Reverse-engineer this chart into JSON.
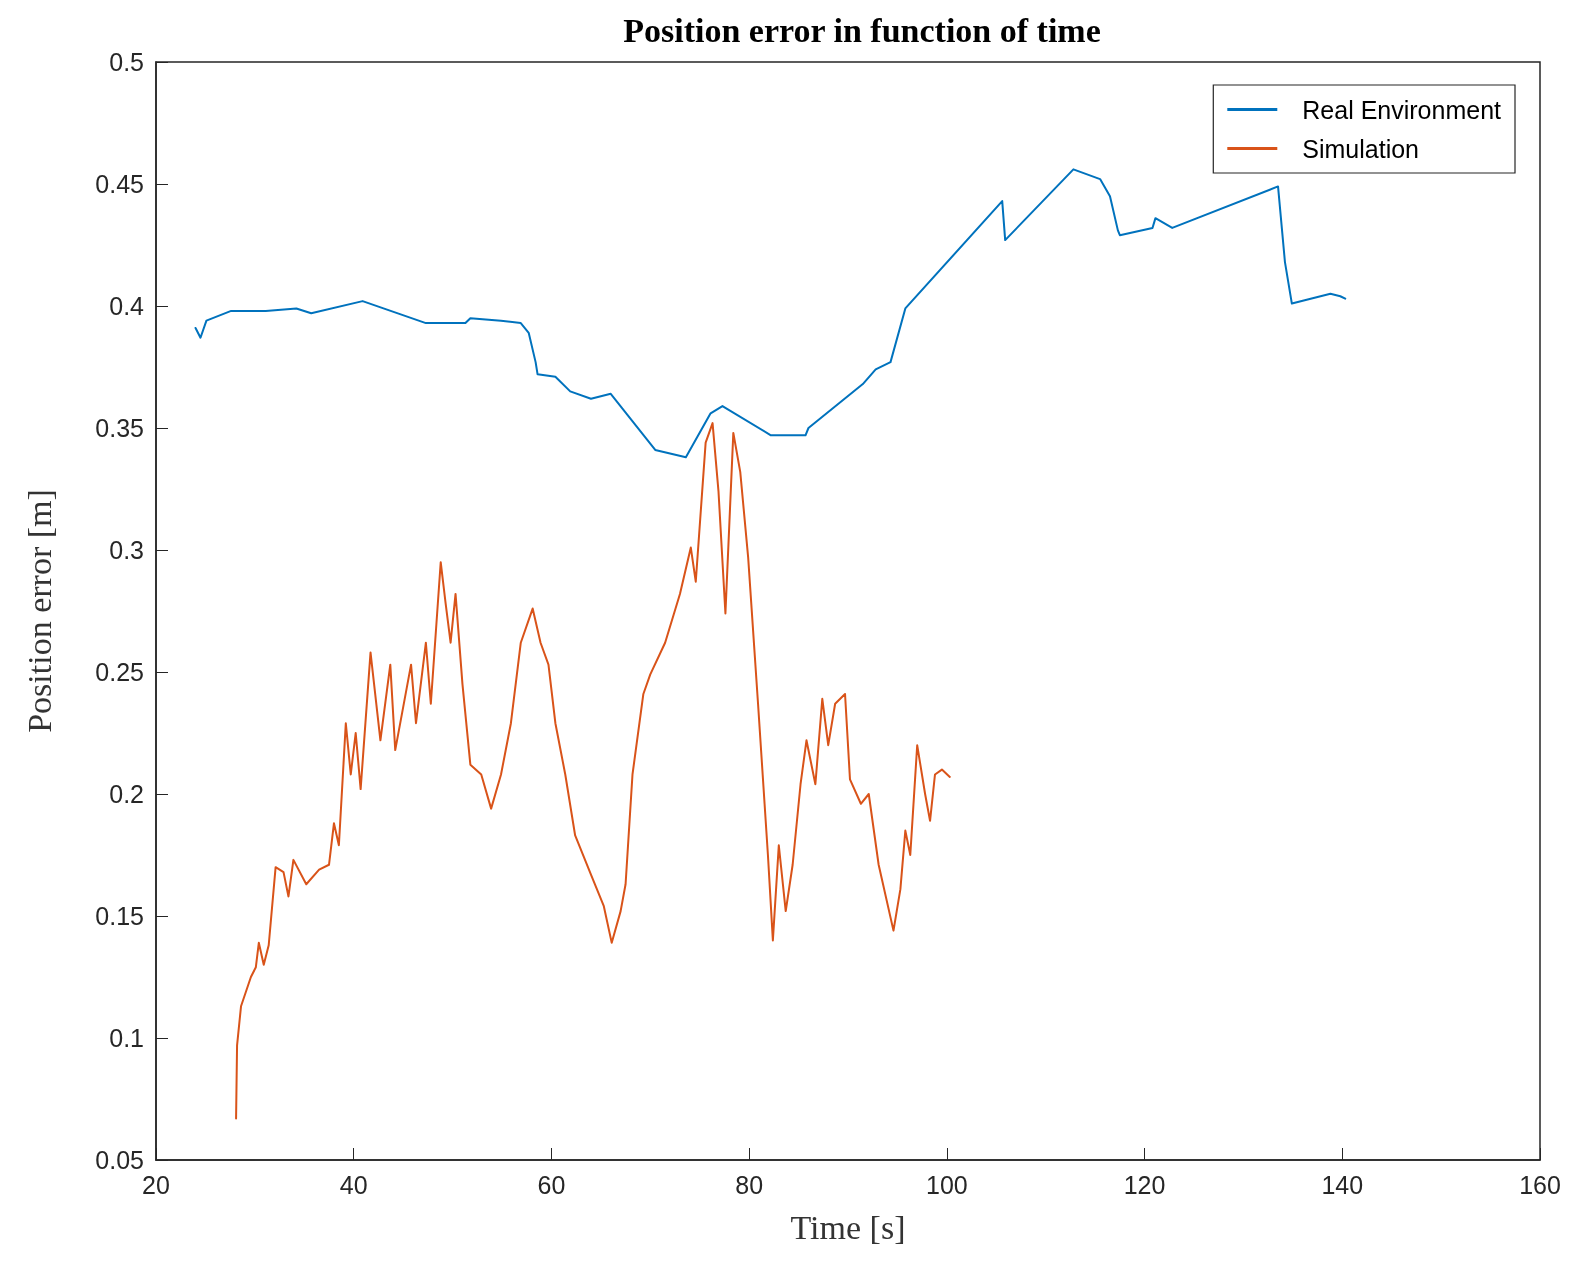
{
  "chart_data": {
    "type": "line",
    "title": "Position error in function of time",
    "xlabel": "Time [s]",
    "ylabel": "Position error [m]",
    "xlim": [
      20,
      160
    ],
    "xticks": [
      20,
      40,
      60,
      80,
      100,
      120,
      140,
      160
    ],
    "ylim": [
      0.05,
      0.5
    ],
    "yticks": [
      0.05,
      0.1,
      0.15,
      0.2,
      0.25,
      0.3,
      0.35,
      0.4,
      0.45,
      0.5
    ],
    "grid": false,
    "legend": "top right",
    "marker": "none",
    "line_style": "solid",
    "series": [
      {
        "name": "Real Environment",
        "color": "#0072bd",
        "x": [
          24.0,
          24.5,
          25.1,
          27.6,
          31.1,
          34.2,
          35.7,
          40.9,
          47.3,
          51.3,
          51.8,
          54.9,
          56.9,
          57.7,
          58.4,
          58.6,
          60.4,
          61.9,
          64.0,
          66.0,
          70.5,
          73.6,
          76.1,
          77.3,
          82.2,
          85.7,
          86.0,
          91.5,
          92.8,
          94.3,
          95.8,
          105.6,
          105.9,
          112.8,
          115.5,
          116.5,
          117.3,
          117.5,
          120.8,
          121.1,
          122.8,
          133.5,
          134.2,
          134.9,
          138.8,
          139.8,
          140.3
        ],
        "values": [
          0.391,
          0.387,
          0.394,
          0.398,
          0.398,
          0.399,
          0.397,
          0.402,
          0.393,
          0.393,
          0.395,
          0.394,
          0.393,
          0.389,
          0.377,
          0.372,
          0.371,
          0.365,
          0.362,
          0.364,
          0.341,
          0.338,
          0.356,
          0.359,
          0.347,
          0.347,
          0.35,
          0.368,
          0.374,
          0.377,
          0.399,
          0.443,
          0.427,
          0.456,
          0.452,
          0.445,
          0.431,
          0.429,
          0.432,
          0.436,
          0.432,
          0.449,
          0.418,
          0.401,
          0.405,
          0.404,
          0.403
        ]
      },
      {
        "name": "Simulation",
        "color": "#d95319",
        "x": [
          28.1,
          28.2,
          28.6,
          29.6,
          30.1,
          30.4,
          30.9,
          31.4,
          32.1,
          32.9,
          33.4,
          33.9,
          35.2,
          36.5,
          37.5,
          38.0,
          38.5,
          39.2,
          39.7,
          40.2,
          40.7,
          41.7,
          42.7,
          43.7,
          44.2,
          45.8,
          46.3,
          47.3,
          47.8,
          48.8,
          49.3,
          49.8,
          50.3,
          51.0,
          51.8,
          52.9,
          53.9,
          54.9,
          55.9,
          56.9,
          58.1,
          58.9,
          59.7,
          60.4,
          61.4,
          62.4,
          64.0,
          65.3,
          66.1,
          67.0,
          67.5,
          68.2,
          69.3,
          70.0,
          71.5,
          73.0,
          74.1,
          74.6,
          75.6,
          76.3,
          76.9,
          77.6,
          78.4,
          79.1,
          79.9,
          80.9,
          81.9,
          82.4,
          83.0,
          83.7,
          84.4,
          85.2,
          85.8,
          86.7,
          87.4,
          88.0,
          88.7,
          89.7,
          90.2,
          91.3,
          92.1,
          93.1,
          94.6,
          95.3,
          95.8,
          96.3,
          97.0,
          97.8,
          98.3,
          98.8,
          99.5,
          100.3
        ],
        "values": [
          0.067,
          0.097,
          0.113,
          0.125,
          0.129,
          0.139,
          0.13,
          0.138,
          0.17,
          0.168,
          0.158,
          0.173,
          0.163,
          0.169,
          0.171,
          0.188,
          0.179,
          0.229,
          0.208,
          0.225,
          0.202,
          0.258,
          0.222,
          0.253,
          0.218,
          0.253,
          0.229,
          0.262,
          0.237,
          0.295,
          0.278,
          0.262,
          0.282,
          0.245,
          0.212,
          0.208,
          0.194,
          0.208,
          0.229,
          0.262,
          0.276,
          0.262,
          0.253,
          0.229,
          0.208,
          0.183,
          0.167,
          0.154,
          0.139,
          0.152,
          0.163,
          0.208,
          0.241,
          0.249,
          0.262,
          0.282,
          0.301,
          0.287,
          0.344,
          0.352,
          0.324,
          0.274,
          0.348,
          0.332,
          0.297,
          0.237,
          0.175,
          0.14,
          0.179,
          0.152,
          0.171,
          0.204,
          0.222,
          0.204,
          0.239,
          0.22,
          0.237,
          0.241,
          0.206,
          0.196,
          0.2,
          0.171,
          0.144,
          0.161,
          0.185,
          0.175,
          0.22,
          0.2,
          0.189,
          0.208,
          0.21,
          0.207
        ]
      }
    ]
  }
}
